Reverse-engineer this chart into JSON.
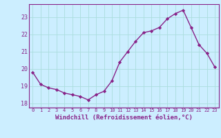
{
  "x": [
    0,
    1,
    2,
    3,
    4,
    5,
    6,
    7,
    8,
    9,
    10,
    11,
    12,
    13,
    14,
    15,
    16,
    17,
    18,
    19,
    20,
    21,
    22,
    23
  ],
  "y": [
    19.8,
    19.1,
    18.9,
    18.8,
    18.6,
    18.5,
    18.4,
    18.2,
    18.5,
    18.7,
    19.3,
    20.4,
    21.0,
    21.6,
    22.1,
    22.2,
    22.4,
    22.9,
    23.2,
    23.4,
    22.4,
    21.4,
    20.9,
    20.1
  ],
  "line_color": "#882288",
  "marker": "D",
  "marker_size": 2.2,
  "bg_color": "#cceeff",
  "grid_color": "#aadddd",
  "xlabel": "Windchill (Refroidissement éolien,°C)",
  "xlim": [
    -0.5,
    23.5
  ],
  "ylim": [
    17.75,
    23.75
  ],
  "yticks": [
    18,
    19,
    20,
    21,
    22,
    23
  ],
  "xticks": [
    0,
    1,
    2,
    3,
    4,
    5,
    6,
    7,
    8,
    9,
    10,
    11,
    12,
    13,
    14,
    15,
    16,
    17,
    18,
    19,
    20,
    21,
    22,
    23
  ],
  "xtick_fontsize": 5.0,
  "ytick_fontsize": 6.0,
  "xlabel_fontsize": 6.5,
  "line_width": 1.0
}
